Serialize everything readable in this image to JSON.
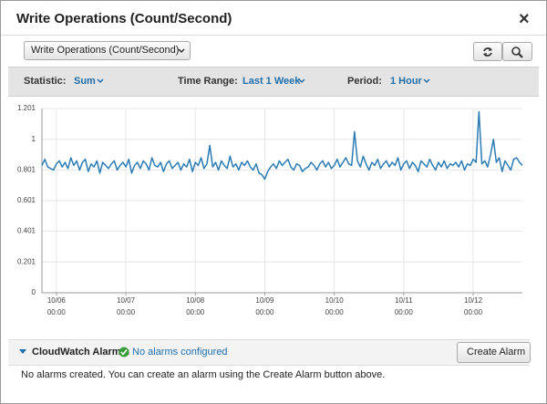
{
  "dialog": {
    "title": "Write Operations (Count/Second)",
    "close": "×"
  },
  "toolbar": {
    "metric_select": "Write Operations (Count/Second)",
    "statistic_label": "Statistic:",
    "statistic": "Sum",
    "time_range_label": "Time Range:",
    "time_range": "Last 1 Week",
    "period_label": "Period:",
    "period": "1 Hour"
  },
  "chart_data": {
    "type": "line",
    "series": [
      {
        "color": "#2b7bb4",
        "values": [
          0.83,
          0.87,
          0.82,
          0.81,
          0.8,
          0.84,
          0.86,
          0.82,
          0.85,
          0.81,
          0.88,
          0.83,
          0.86,
          0.8,
          0.85,
          0.87,
          0.79,
          0.84,
          0.82,
          0.86,
          0.78,
          0.85,
          0.83,
          0.81,
          0.84,
          0.86,
          0.8,
          0.83,
          0.85,
          0.82,
          0.87,
          0.78,
          0.83,
          0.85,
          0.81,
          0.86,
          0.84,
          0.8,
          0.88,
          0.83,
          0.82,
          0.85,
          0.79,
          0.84,
          0.86,
          0.81,
          0.83,
          0.85,
          0.8,
          0.84,
          0.82,
          0.87,
          0.79,
          0.85,
          0.83,
          0.88,
          0.81,
          0.84,
          0.96,
          0.82,
          0.85,
          0.8,
          0.86,
          0.83,
          0.81,
          0.89,
          0.82,
          0.84,
          0.8,
          0.85,
          0.83,
          0.86,
          0.82,
          0.8,
          0.84,
          0.78,
          0.77,
          0.74,
          0.79,
          0.82,
          0.84,
          0.81,
          0.86,
          0.83,
          0.85,
          0.87,
          0.82,
          0.8,
          0.84,
          0.83,
          0.79,
          0.81,
          0.82,
          0.85,
          0.83,
          0.8,
          0.84,
          0.86,
          0.82,
          0.85,
          0.81,
          0.83,
          0.87,
          0.82,
          0.85,
          0.88,
          0.84,
          0.83,
          1.05,
          0.86,
          0.82,
          0.89,
          0.84,
          0.8,
          0.85,
          0.83,
          0.87,
          0.81,
          0.84,
          0.86,
          0.82,
          0.85,
          0.83,
          0.88,
          0.8,
          0.84,
          0.86,
          0.81,
          0.85,
          0.83,
          0.79,
          0.86,
          0.84,
          0.82,
          0.87,
          0.83,
          0.8,
          0.85,
          0.82,
          0.86,
          0.81,
          0.84,
          0.83,
          0.85,
          0.82,
          0.86,
          0.8,
          0.84,
          0.83,
          0.87,
          0.85,
          1.18,
          0.84,
          0.86,
          0.82,
          0.9,
          1.0,
          0.85,
          0.88,
          0.79,
          0.86,
          0.83,
          0.8,
          0.87,
          0.88,
          0.85,
          0.83
        ]
      }
    ],
    "xlim": [
      0,
      166
    ],
    "xticks": [
      {
        "value": 5,
        "label": "10/06\n00:00"
      },
      {
        "value": 29,
        "label": "10/07\n00:00"
      },
      {
        "value": 53,
        "label": "10/08\n00:00"
      },
      {
        "value": 77,
        "label": "10/09\n00:00"
      },
      {
        "value": 101,
        "label": "10/10\n00:00"
      },
      {
        "value": 125,
        "label": "10/11\n00:00"
      },
      {
        "value": 149,
        "label": "10/12\n00:00"
      }
    ],
    "ylim": [
      0,
      1.201
    ],
    "yticks": [
      0,
      0.201,
      0.401,
      0.601,
      0.801,
      1,
      1.201
    ],
    "grid": true
  },
  "alarms": {
    "title": "CloudWatch Alarms:",
    "status": "No alarms configured",
    "button": "Create Alarm",
    "message": "No alarms created. You can create an alarm using the Create Alarm button above."
  }
}
